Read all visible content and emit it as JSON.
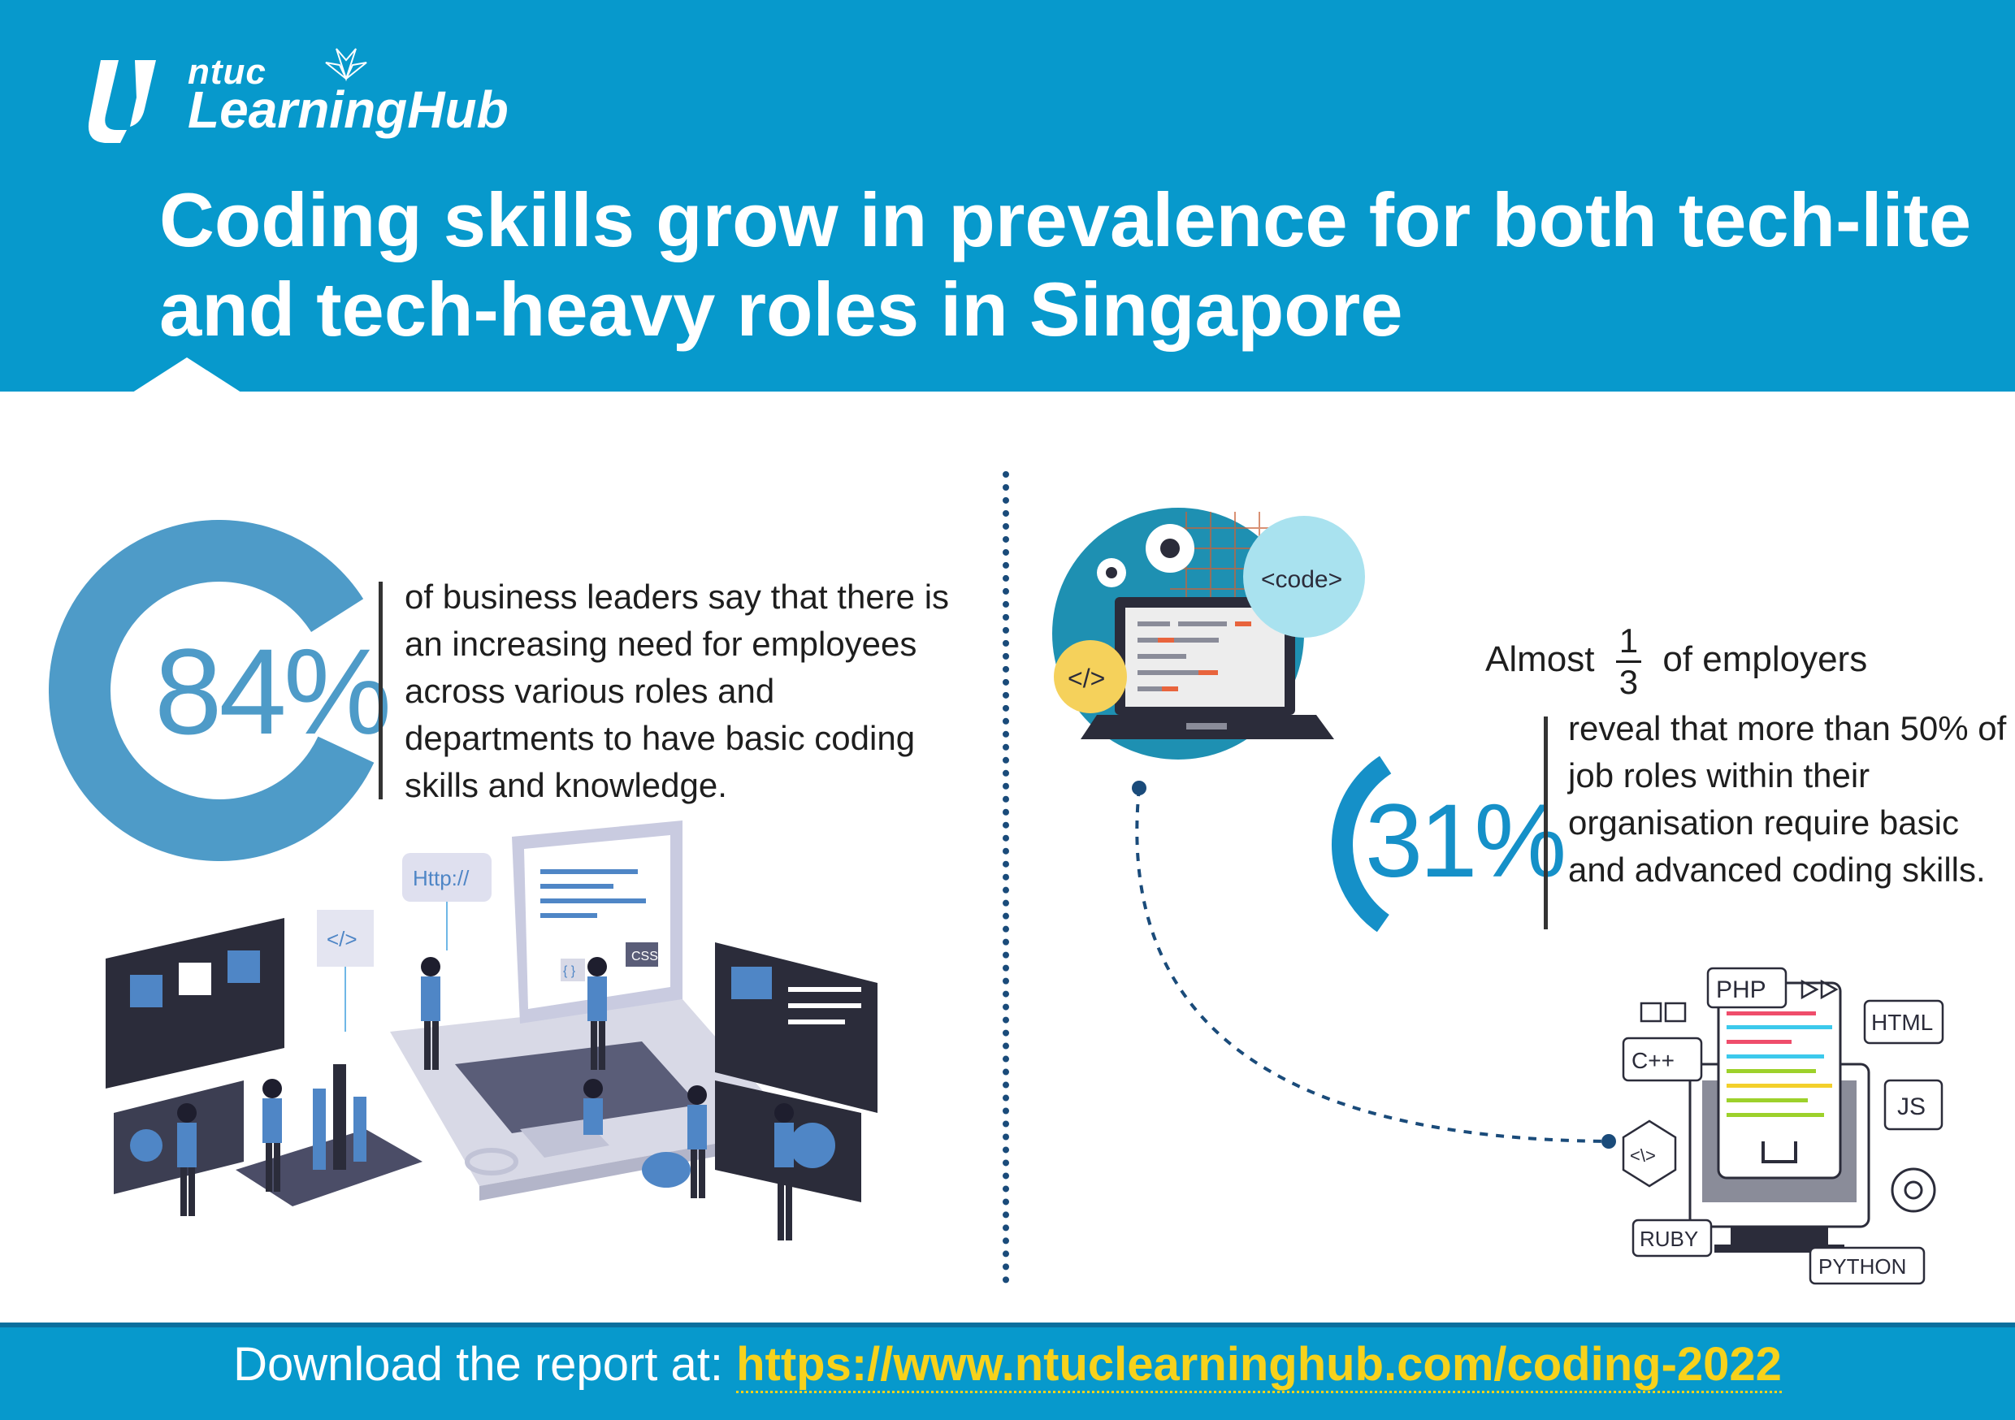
{
  "brand": {
    "line1": "ntuc",
    "line2": "LearningHub"
  },
  "headline": "Coding skills grow in prevalence for both tech-lite and tech-heavy roles in Singapore",
  "stat_left": {
    "value": "84%",
    "fraction": 0.84,
    "text": "of business leaders say that there is an increasing need for employees across various roles and departments to have basic coding skills and knowledge."
  },
  "stat_right": {
    "intro_prefix": "Almost",
    "fraction_num": "1",
    "fraction_den": "3",
    "intro_suffix": "of employers",
    "value": "31%",
    "fraction": 0.31,
    "text": "reveal that more than 50% of job roles within their organisation require basic and advanced coding skills."
  },
  "laptop_illustration": {
    "code_tag": "<code>",
    "html_tag": "</>"
  },
  "left_illustration": {
    "http_label": "Http://",
    "css_label": "CSS",
    "slash_tag": "</>",
    "brace_tag": "{ }"
  },
  "code_illustration": {
    "labels": [
      "PHP",
      "HTML",
      "C++",
      "JS",
      "RUBY",
      "PYTHON"
    ],
    "code_symbol": "<\\>"
  },
  "footer": {
    "prefix": "Download the report at:",
    "url": "https://www.ntuclearninghub.com/coding-2022"
  },
  "colors": {
    "header_blue": "#0799cc",
    "ring_left": "#4e9bc8",
    "ring_right": "#1590c8",
    "footer_url": "#f7d21c",
    "dotted_navy": "#1a4b7a"
  }
}
